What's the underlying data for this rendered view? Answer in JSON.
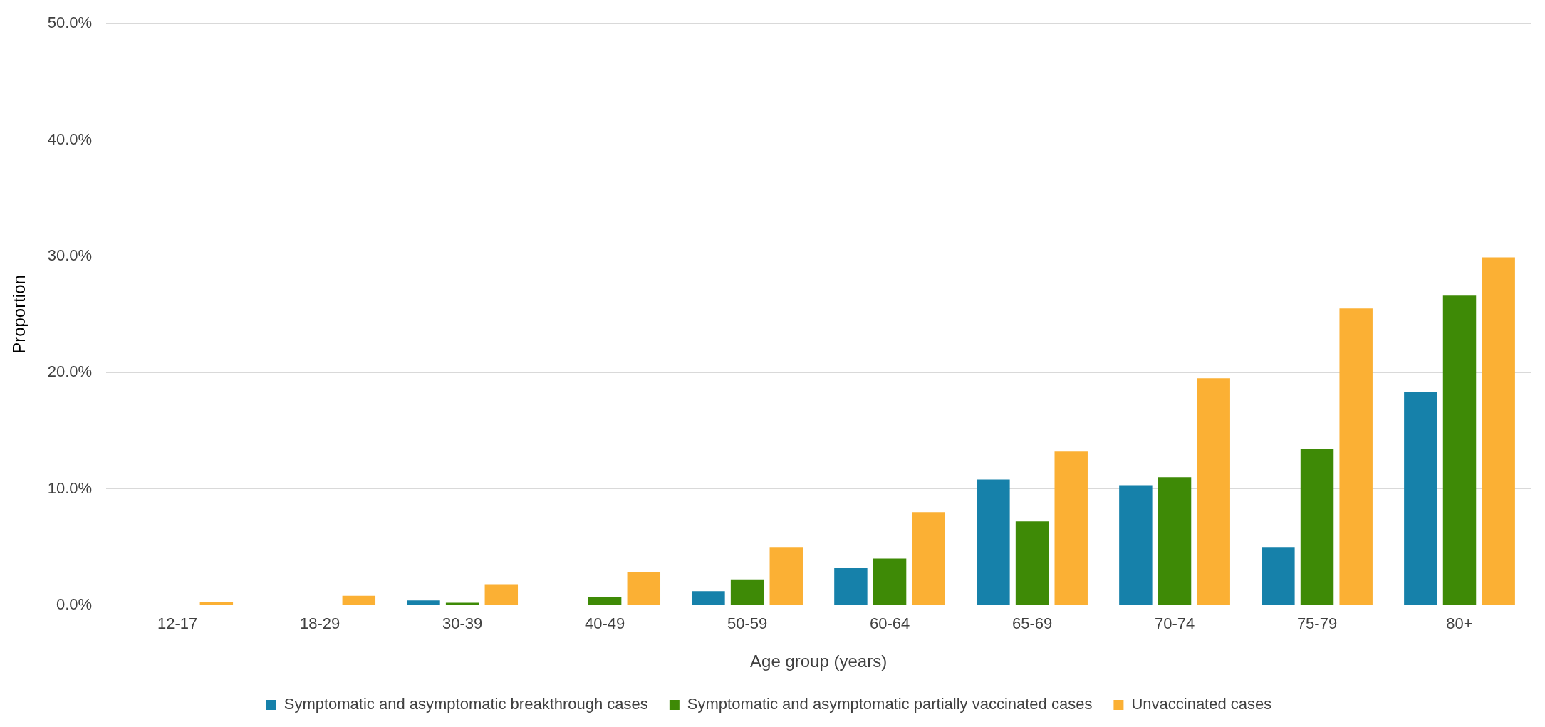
{
  "chart_data": {
    "type": "bar",
    "xlabel": "Age group (years)",
    "ylabel": "Proportion",
    "categories": [
      "12-17",
      "18-29",
      "30-39",
      "40-49",
      "50-59",
      "60-64",
      "65-69",
      "70-74",
      "75-79",
      "80+"
    ],
    "series": [
      {
        "name": "Symptomatic and asymptomatic breakthrough cases",
        "color": "#1681aa",
        "values": [
          0,
          0,
          0.4,
          0,
          1.2,
          3.2,
          10.8,
          10.3,
          5.0,
          18.3
        ]
      },
      {
        "name": "Symptomatic and asymptomatic partially vaccinated cases",
        "color": "#3e8a06",
        "values": [
          0,
          0,
          0.2,
          0.7,
          2.2,
          4.0,
          7.2,
          11.0,
          13.4,
          26.6
        ]
      },
      {
        "name": "Unvaccinated cases",
        "color": "#fbb034",
        "values": [
          0.3,
          0.8,
          1.8,
          2.8,
          5.0,
          8.0,
          13.2,
          19.5,
          25.5,
          29.9
        ]
      }
    ],
    "ylim": [
      0,
      50
    ],
    "yticks": [
      {
        "value": 0,
        "label": "0.0%"
      },
      {
        "value": 10,
        "label": "10.0%"
      },
      {
        "value": 20,
        "label": "20.0%"
      },
      {
        "value": 30,
        "label": "30.0%"
      },
      {
        "value": 40,
        "label": "40.0%"
      },
      {
        "value": 50,
        "label": "50.0%"
      }
    ],
    "grid": "y",
    "legend": "bottom"
  }
}
